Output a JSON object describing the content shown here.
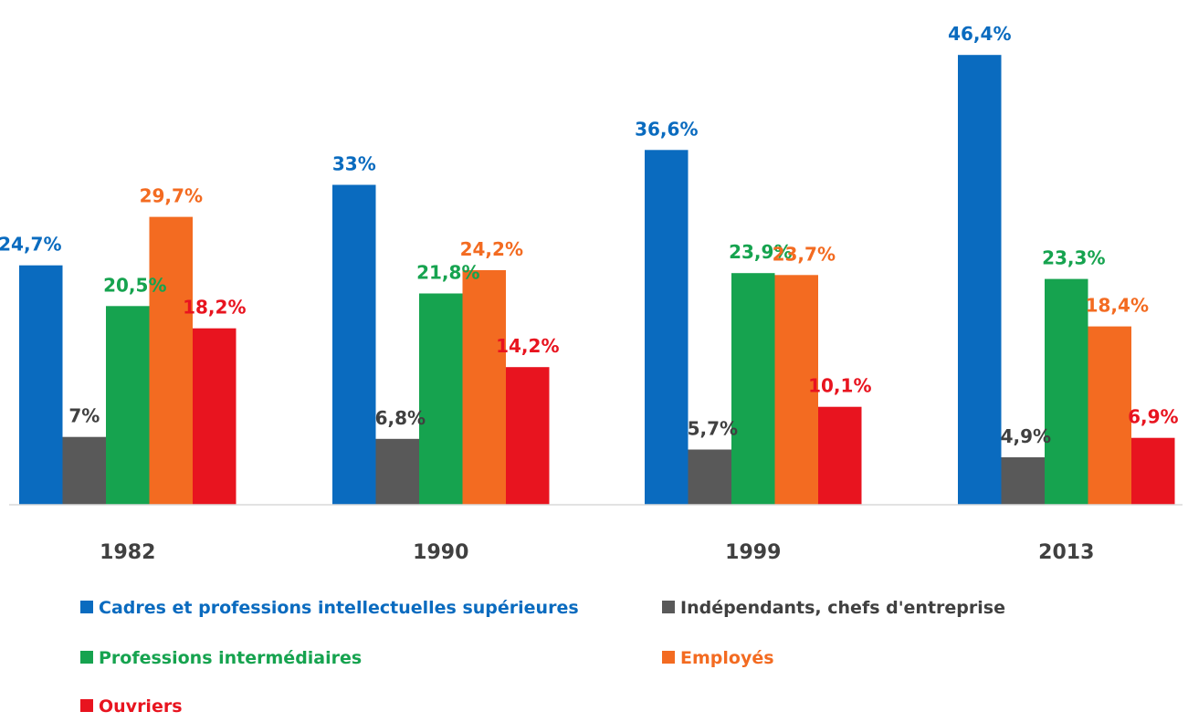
{
  "chart_data": {
    "type": "bar",
    "categories": [
      "1982",
      "1990",
      "1999",
      "2013"
    ],
    "ylim": [
      0,
      50
    ],
    "grid": false,
    "legend_placement": "bottom",
    "series": [
      {
        "name": "Cadres et professions intellectuelles supérieures",
        "color": "#0A6BBF",
        "values": [
          24.7,
          33,
          36.6,
          46.4
        ],
        "labels": [
          "24,7%",
          "33%",
          "36,6%",
          "46,4%"
        ]
      },
      {
        "name": "Indépendants, chefs d'entreprise",
        "color": "#595959",
        "values": [
          7,
          6.8,
          5.7,
          4.9
        ],
        "labels": [
          "7%",
          "6,8%",
          "5,7%",
          "4,9%"
        ]
      },
      {
        "name": "Professions intermédiaires",
        "color": "#16A34F",
        "values": [
          20.5,
          21.8,
          23.9,
          23.3
        ],
        "labels": [
          "20,5%",
          "21,8%",
          "23,9%",
          "23,3%"
        ]
      },
      {
        "name": "Employés",
        "color": "#F36B21",
        "values": [
          29.7,
          24.2,
          23.7,
          18.4
        ],
        "labels": [
          "29,7%",
          "24,2%",
          "23,7%",
          "18,4%"
        ]
      },
      {
        "name": "Ouvriers",
        "color": "#E8141F",
        "values": [
          18.2,
          14.2,
          10.1,
          6.9
        ],
        "labels": [
          "18,2%",
          "14,2%",
          "10,1%",
          "6,9%"
        ]
      }
    ]
  }
}
